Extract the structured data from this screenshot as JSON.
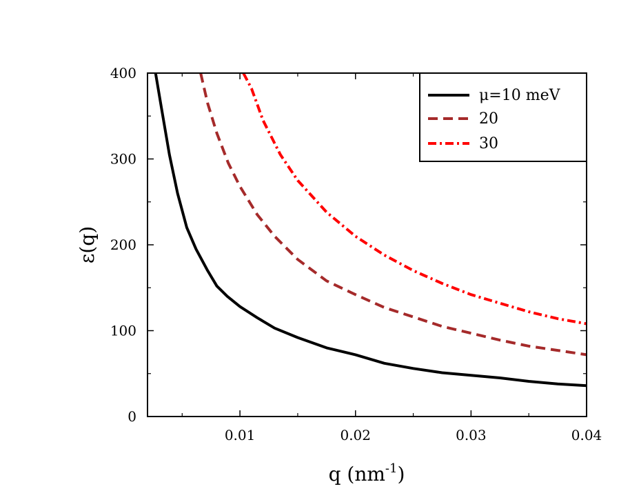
{
  "chart_data": {
    "type": "line",
    "xlabel": "q (nm",
    "xlabel_sup": "-1",
    "xlabel_close": ")",
    "ylabel": "ε(q)",
    "xlim": [
      0.002,
      0.04
    ],
    "ylim": [
      0,
      400
    ],
    "xticks": [
      0.01,
      0.02,
      0.03,
      0.04
    ],
    "xtick_labels": [
      "0.01",
      "0.02",
      "0.03",
      "0.04"
    ],
    "yticks": [
      0,
      100,
      200,
      300,
      400
    ],
    "ytick_labels": [
      "0",
      "100",
      "200",
      "300",
      "400"
    ],
    "grid": false,
    "legend_position": "top-right",
    "series": [
      {
        "name": "μ=10 meV",
        "color": "#000000",
        "style": "solid",
        "x": [
          0.0027,
          0.0032,
          0.0039,
          0.0046,
          0.0054,
          0.0062,
          0.0072,
          0.008,
          0.0089,
          0.01,
          0.0115,
          0.013,
          0.015,
          0.0175,
          0.02,
          0.0225,
          0.025,
          0.0275,
          0.03,
          0.0325,
          0.035,
          0.0375,
          0.04
        ],
        "y": [
          400,
          360,
          305,
          260,
          220,
          195,
          170,
          152,
          140,
          128,
          115,
          103,
          92,
          80,
          72,
          62,
          56,
          51,
          48,
          45,
          41,
          38,
          36
        ]
      },
      {
        "name": "20",
        "color": "#a52a2a",
        "style": "dashed",
        "x": [
          0.0066,
          0.0072,
          0.008,
          0.009,
          0.01,
          0.0115,
          0.013,
          0.015,
          0.0175,
          0.02,
          0.0225,
          0.025,
          0.0275,
          0.03,
          0.0325,
          0.035,
          0.0375,
          0.04
        ],
        "y": [
          400,
          365,
          330,
          295,
          268,
          235,
          210,
          183,
          158,
          142,
          127,
          116,
          105,
          97,
          89,
          82,
          77,
          72
        ]
      },
      {
        "name": "30",
        "color": "#ff0000",
        "style": "dashdot",
        "x": [
          0.0103,
          0.011,
          0.012,
          0.0135,
          0.015,
          0.0175,
          0.02,
          0.0225,
          0.025,
          0.0275,
          0.03,
          0.0325,
          0.035,
          0.0375,
          0.04
        ],
        "y": [
          400,
          382,
          345,
          305,
          275,
          238,
          210,
          188,
          170,
          155,
          142,
          132,
          122,
          114,
          108
        ]
      }
    ]
  }
}
